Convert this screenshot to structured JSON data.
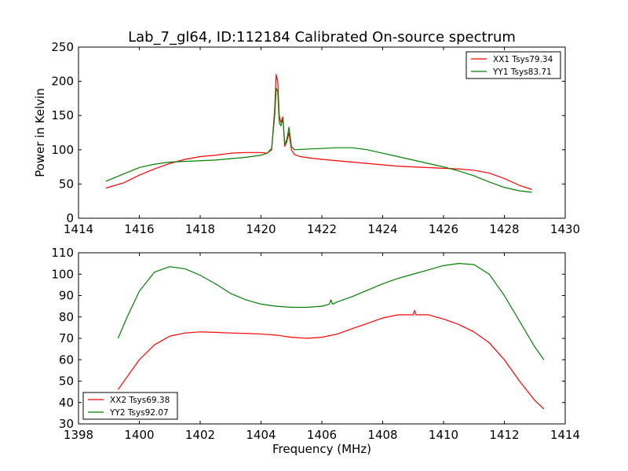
{
  "figure": {
    "title": "Lab_7_gl64, ID:112184 Calibrated On-source spectrum"
  },
  "chart_data": [
    {
      "type": "line",
      "xlabel": "",
      "ylabel": "Power in Kelvin",
      "xlim": [
        1414,
        1430
      ],
      "ylim": [
        0,
        250
      ],
      "xticks": [
        1414,
        1416,
        1418,
        1420,
        1422,
        1424,
        1426,
        1428,
        1430
      ],
      "yticks": [
        0,
        50,
        100,
        150,
        200,
        250
      ],
      "grid": false,
      "legend_position": "top-right",
      "series": [
        {
          "name": "XX1 Tsys79.34",
          "color": "#ff0000",
          "x": [
            1414.9,
            1415.5,
            1416.0,
            1416.5,
            1417.0,
            1417.5,
            1418.0,
            1418.5,
            1419.0,
            1419.5,
            1420.0,
            1420.2,
            1420.35,
            1420.45,
            1420.5,
            1420.55,
            1420.6,
            1420.65,
            1420.72,
            1420.78,
            1420.85,
            1420.92,
            1421.0,
            1421.1,
            1421.3,
            1421.6,
            1422.0,
            1422.5,
            1423.0,
            1423.5,
            1424.0,
            1424.5,
            1425.0,
            1425.5,
            1426.0,
            1426.5,
            1427.0,
            1427.5,
            1428.0,
            1428.5,
            1428.9
          ],
          "values": [
            44,
            52,
            63,
            72,
            80,
            86,
            90,
            92,
            95,
            96,
            96,
            95,
            100,
            160,
            210,
            200,
            150,
            140,
            148,
            105,
            112,
            125,
            100,
            93,
            90,
            88,
            86,
            84,
            82,
            80,
            78,
            76,
            75,
            74,
            73,
            72,
            70,
            66,
            58,
            48,
            42
          ]
        },
        {
          "name": "YY1 Tsys83.71",
          "color": "#008000",
          "x": [
            1414.9,
            1415.5,
            1416.0,
            1416.5,
            1417.0,
            1417.5,
            1418.0,
            1418.5,
            1419.0,
            1419.5,
            1420.0,
            1420.2,
            1420.35,
            1420.45,
            1420.5,
            1420.55,
            1420.6,
            1420.65,
            1420.72,
            1420.78,
            1420.85,
            1420.92,
            1421.0,
            1421.1,
            1421.5,
            1422.0,
            1422.5,
            1423.0,
            1423.5,
            1424.0,
            1424.5,
            1425.0,
            1425.5,
            1426.0,
            1426.5,
            1427.0,
            1427.5,
            1428.0,
            1428.5,
            1428.9
          ],
          "values": [
            54,
            65,
            74,
            79,
            82,
            83,
            84,
            85,
            87,
            89,
            92,
            95,
            102,
            150,
            190,
            185,
            140,
            135,
            145,
            108,
            115,
            133,
            105,
            100,
            101,
            102,
            103,
            103,
            100,
            95,
            90,
            85,
            80,
            75,
            69,
            62,
            53,
            45,
            40,
            38
          ]
        }
      ]
    },
    {
      "type": "line",
      "xlabel": "Frequency (MHz)",
      "ylabel": "",
      "xlim": [
        1398,
        1414
      ],
      "ylim": [
        30,
        110
      ],
      "xticks": [
        1398,
        1400,
        1402,
        1404,
        1406,
        1408,
        1410,
        1412,
        1414
      ],
      "yticks": [
        30,
        40,
        50,
        60,
        70,
        80,
        90,
        100,
        110
      ],
      "grid": false,
      "legend_position": "bottom-left",
      "series": [
        {
          "name": "XX2 Tsys69.38",
          "color": "#ff0000",
          "x": [
            1399.3,
            1399.6,
            1400.0,
            1400.5,
            1401.0,
            1401.5,
            1402.0,
            1402.5,
            1403.0,
            1403.5,
            1404.0,
            1404.5,
            1405.0,
            1405.5,
            1406.0,
            1406.5,
            1407.0,
            1407.5,
            1408.0,
            1408.5,
            1409.0,
            1409.05,
            1409.1,
            1409.5,
            1410.0,
            1410.5,
            1411.0,
            1411.5,
            1412.0,
            1412.5,
            1413.0,
            1413.3
          ],
          "values": [
            46,
            52,
            60,
            67,
            71,
            72.5,
            73,
            72.8,
            72.5,
            72.3,
            72,
            71.5,
            70.5,
            70,
            70.5,
            72,
            74.5,
            77,
            79.5,
            81,
            81,
            83,
            81,
            81,
            79,
            76.5,
            73,
            68,
            60,
            50,
            41,
            37
          ]
        },
        {
          "name": "YY2 Tsys92.07",
          "color": "#008000",
          "x": [
            1399.3,
            1399.6,
            1400.0,
            1400.5,
            1401.0,
            1401.5,
            1402.0,
            1402.5,
            1403.0,
            1403.5,
            1404.0,
            1404.5,
            1405.0,
            1405.5,
            1406.0,
            1406.25,
            1406.3,
            1406.35,
            1406.5,
            1407.0,
            1407.5,
            1408.0,
            1408.5,
            1409.0,
            1409.5,
            1410.0,
            1410.5,
            1411.0,
            1411.5,
            1412.0,
            1412.5,
            1413.0,
            1413.3
          ],
          "values": [
            70,
            80,
            92,
            101,
            103.5,
            102.5,
            99.5,
            95.5,
            91,
            88,
            86,
            85,
            84.5,
            84.5,
            85,
            86,
            88,
            86,
            87,
            89.5,
            92.5,
            95.5,
            98,
            100,
            102,
            104,
            105,
            104.5,
            100,
            90,
            78,
            66,
            60
          ]
        }
      ]
    }
  ]
}
